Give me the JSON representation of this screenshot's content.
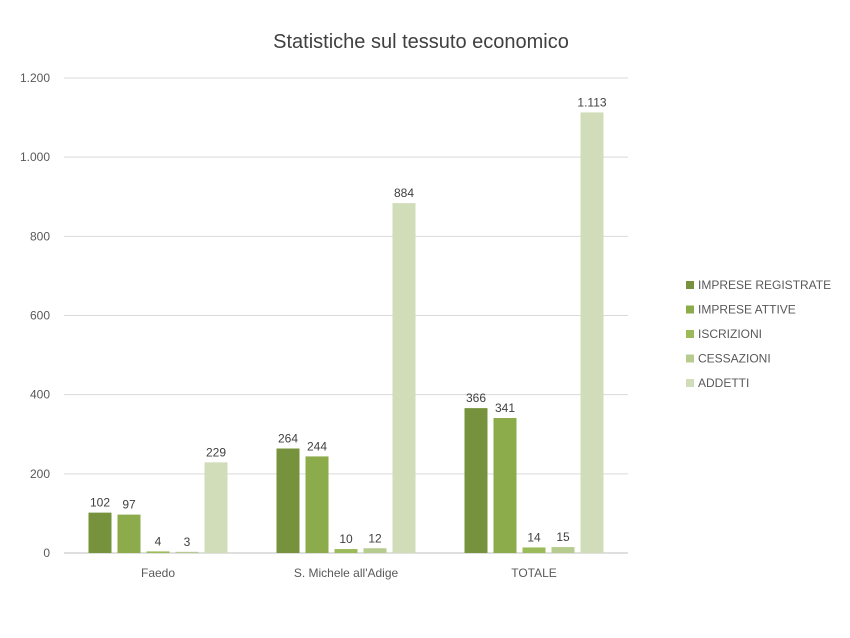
{
  "chart_data": {
    "type": "bar",
    "title": "Statistiche sul tessuto economico",
    "xlabel": "",
    "ylabel": "",
    "categories": [
      "Faedo",
      "S. Michele all'Adige",
      "TOTALE"
    ],
    "series": [
      {
        "name": "IMPRESE REGISTRATE",
        "values": [
          102,
          264,
          366
        ],
        "labels": [
          "102",
          "264",
          "366"
        ],
        "color": "#76923c"
      },
      {
        "name": "IMPRESE ATTIVE",
        "values": [
          97,
          244,
          341
        ],
        "labels": [
          "97",
          "244",
          "341"
        ],
        "color": "#8cab4a"
      },
      {
        "name": "ISCRIZIONI",
        "values": [
          4,
          10,
          14
        ],
        "labels": [
          "4",
          "10",
          "14"
        ],
        "color": "#9bbb59"
      },
      {
        "name": "CESSAZIONI",
        "values": [
          3,
          12,
          15
        ],
        "labels": [
          "3",
          "12",
          "15"
        ],
        "color": "#b5cc8e"
      },
      {
        "name": "ADDETTI",
        "values": [
          229,
          884,
          1113
        ],
        "labels": [
          "229",
          "884",
          "1.113"
        ],
        "color": "#d0ddb8"
      }
    ],
    "ylim": [
      0,
      1200
    ],
    "yticks": [
      0,
      200,
      400,
      600,
      800,
      1000,
      1200
    ],
    "ytick_labels": [
      "0",
      "200",
      "400",
      "600",
      "800",
      "1.000",
      "1.200"
    ],
    "grid": true,
    "legend_position": "right"
  }
}
